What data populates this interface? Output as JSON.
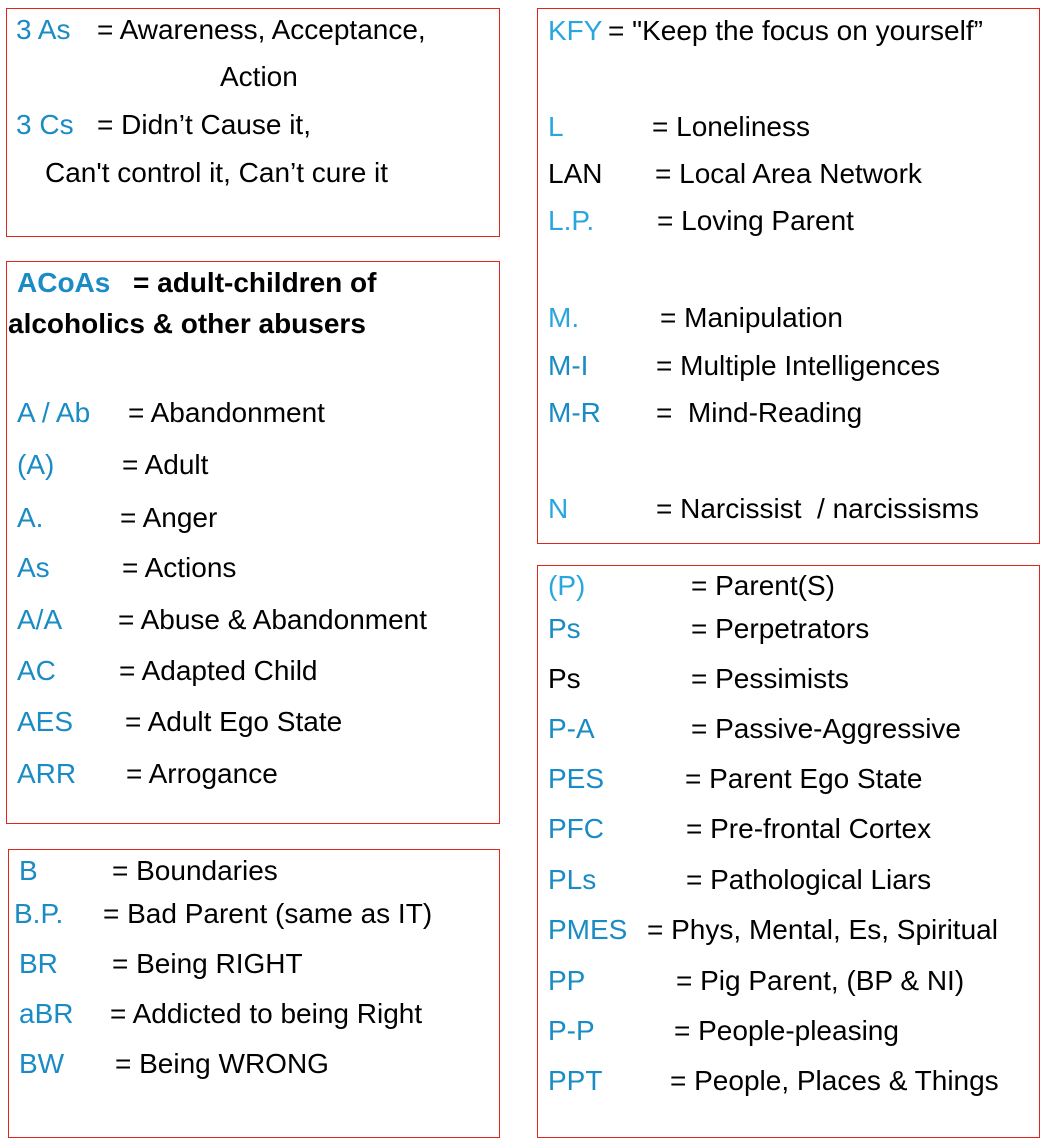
{
  "colors": {
    "blue": "#1a8bc4",
    "light_blue": "#2aa6df",
    "black": "#000000",
    "border": "#e0261b"
  },
  "boxes": [
    {
      "lines": [
        {
          "abbr": "3 As",
          "def": "= Awareness, Acceptance,",
          "color": "blue"
        },
        {
          "abbr": "",
          "def": "Action",
          "color": "blue"
        },
        {
          "abbr": "3 Cs",
          "def": "= Didn’t Cause it,",
          "color": "blue"
        },
        {
          "abbr": "",
          "def": "Can't control it, Can’t cure it",
          "color": "blue"
        }
      ]
    },
    {
      "lines": [
        {
          "abbr": "ACoAs",
          "def": "= adult-children of",
          "color": "blue"
        },
        {
          "abbr": "",
          "def": "alcoholics & other abusers",
          "color": "blue"
        },
        {
          "abbr": "A / Ab",
          "def": "= Abandonment",
          "color": "blue"
        },
        {
          "abbr": "(A)",
          "def": "= Adult",
          "color": "blue"
        },
        {
          "abbr": "A.",
          "def": "= Anger",
          "color": "blue"
        },
        {
          "abbr": "As",
          "def": "= Actions",
          "color": "blue"
        },
        {
          "abbr": "A/A",
          "def": "= Abuse & Abandonment",
          "color": "blue"
        },
        {
          "abbr": "AC",
          "def": "= Adapted Child",
          "color": "blue"
        },
        {
          "abbr": "AES",
          "def": "= Adult Ego State",
          "color": "blue"
        },
        {
          "abbr": "ARR",
          "def": "= Arrogance",
          "color": "blue"
        }
      ]
    },
    {
      "lines": [
        {
          "abbr": "B",
          "def": "= Boundaries",
          "color": "blue"
        },
        {
          "abbr": "B.P.",
          "def": "= Bad Parent (same as IT)",
          "color": "blue"
        },
        {
          "abbr": "BR",
          "def": "= Being RIGHT",
          "color": "blue"
        },
        {
          "abbr": "aBR",
          "def": "= Addicted to being Right",
          "color": "blue"
        },
        {
          "abbr": "BW",
          "def": "= Being WRONG",
          "color": "blue"
        }
      ]
    },
    {
      "lines": [
        {
          "abbr": "KFY",
          "def": "= \"Keep the focus on yourself”",
          "color": "light_blue"
        },
        {
          "abbr": "L",
          "def": "= Loneliness",
          "color": "light_blue"
        },
        {
          "abbr": "LAN",
          "def": "= Local Area Network",
          "color": "black"
        },
        {
          "abbr": "L.P.",
          "def": "= Loving Parent",
          "color": "light_blue"
        },
        {
          "abbr": "M.",
          "def": "= Manipulation",
          "color": "light_blue"
        },
        {
          "abbr": "M-I",
          "def": "= Multiple Intelligences",
          "color": "blue"
        },
        {
          "abbr": "M-R",
          "def": "=  Mind-Reading",
          "color": "blue"
        },
        {
          "abbr": "N",
          "def": "= Narcissist  / narcissisms",
          "color": "light_blue"
        }
      ]
    },
    {
      "lines": [
        {
          "abbr": "(P)",
          "def": "= Parent(S)",
          "color": "light_blue"
        },
        {
          "abbr": "Ps",
          "def": "= Perpetrators",
          "color": "blue"
        },
        {
          "abbr": "Ps",
          "def": "= Pessimists",
          "color": "black"
        },
        {
          "abbr": "P-A",
          "def": "= Passive-Aggressive",
          "color": "blue"
        },
        {
          "abbr": "PES",
          "def": "= Parent Ego State",
          "color": "blue"
        },
        {
          "abbr": "PFC",
          "def": "= Pre-frontal Cortex",
          "color": "blue"
        },
        {
          "abbr": "PLs",
          "def": "= Pathological Liars",
          "color": "blue"
        },
        {
          "abbr": "PMES",
          "def": "= Phys, Mental, Es, Spiritual",
          "color": "blue"
        },
        {
          "abbr": "PP",
          "def": "= Pig Parent, (BP & NI)",
          "color": "blue"
        },
        {
          "abbr": "P-P",
          "def": "= People-pleasing",
          "color": "blue"
        },
        {
          "abbr": "PPT",
          "def": "= People, Places & Things",
          "color": "blue"
        }
      ]
    }
  ]
}
